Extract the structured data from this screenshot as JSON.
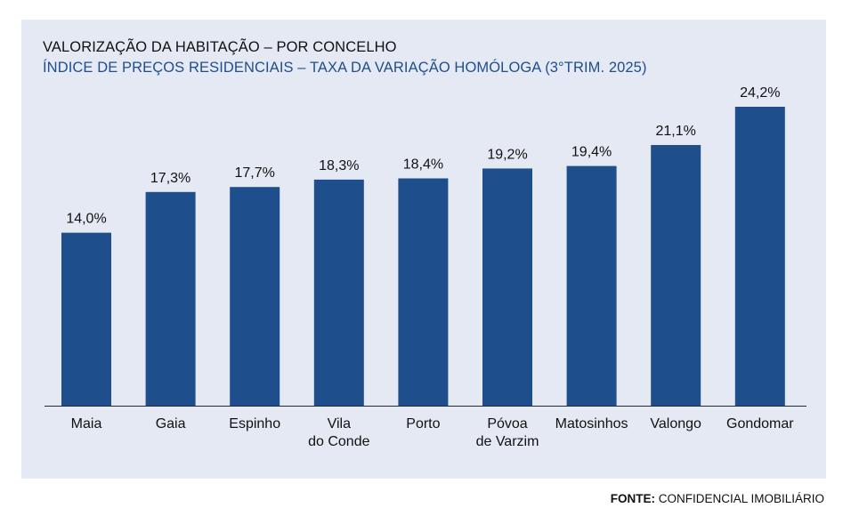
{
  "chart_data": {
    "type": "bar",
    "title": "VALORIZAÇÃO DA HABITAÇÃO – POR CONCELHO",
    "subtitle": "ÍNDICE DE PREÇOS RESIDENCIAIS – TAXA DA VARIAÇÃO HOMÓLOGA (3°TRIM. 2025)",
    "categories": [
      [
        "Maia"
      ],
      [
        "Gaia"
      ],
      [
        "Espinho"
      ],
      [
        "Vila",
        "do Conde"
      ],
      [
        "Porto"
      ],
      [
        "Póvoa",
        "de Varzim"
      ],
      [
        "Matosinhos"
      ],
      [
        "Valongo"
      ],
      [
        "Gondomar"
      ]
    ],
    "values": [
      14.0,
      17.3,
      17.7,
      18.3,
      18.4,
      19.2,
      19.4,
      21.1,
      24.2
    ],
    "value_labels": [
      "14,0%",
      "17,3%",
      "17,7%",
      "18,3%",
      "18,4%",
      "19,2%",
      "19,4%",
      "21,1%",
      "24,2%"
    ],
    "xlabel": "",
    "ylabel": "",
    "ylim": [
      0,
      24.2
    ],
    "bar_color": "#1f4e8c"
  },
  "source": {
    "label": "FONTE:",
    "text": " CONFIDENCIAL IMOBILIÁRIO"
  }
}
